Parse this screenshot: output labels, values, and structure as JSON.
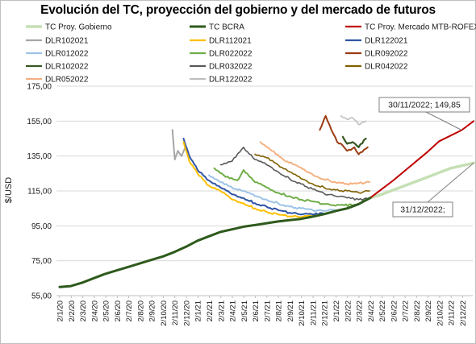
{
  "chart_data": {
    "type": "line",
    "title": "Evolución del TC, proyección del gobierno y del mercado de futuros",
    "xlabel": "",
    "ylabel": "$/USD",
    "ylim": [
      55,
      175
    ],
    "yticks": [
      "55,00",
      "75,00",
      "95,00",
      "115,00",
      "135,00",
      "155,00",
      "175,00"
    ],
    "ytick_values": [
      55,
      75,
      95,
      115,
      135,
      155,
      175
    ],
    "xticks": [
      "2/1/20",
      "2/2/20",
      "2/3/20",
      "2/4/20",
      "2/5/20",
      "2/6/20",
      "2/7/20",
      "2/8/20",
      "2/9/20",
      "2/10/20",
      "2/11/20",
      "2/12/20",
      "2/1/21",
      "2/2/21",
      "2/3/21",
      "2/4/21",
      "2/5/21",
      "2/6/21",
      "2/7/21",
      "2/8/21",
      "2/9/21",
      "2/10/21",
      "2/11/21",
      "2/12/21",
      "2/1/22",
      "2/2/22",
      "2/3/22",
      "2/4/22",
      "2/5/22",
      "2/6/22",
      "2/7/22",
      "2/8/22",
      "2/9/22",
      "2/10/22",
      "2/11/22",
      "2/12/22"
    ],
    "grid": true,
    "legend_position": "top",
    "annotations": [
      {
        "text": "30/11/2022; 149,85",
        "x": "2022-11-30",
        "y": 149.85,
        "series": "TC Proy. Mercado MTB-ROFEX"
      },
      {
        "text": "31/12/2022;",
        "x": "2022-12-31",
        "y": 131,
        "series": "TC Proy. Gobierno"
      }
    ],
    "series": [
      {
        "name": "TC Proy. Gobierno",
        "color": "#c5e0b4",
        "width": 3.5,
        "points": [
          [
            "2022-04-01",
            111
          ],
          [
            "2022-05-01",
            113
          ],
          [
            "2022-06-01",
            115.5
          ],
          [
            "2022-07-01",
            118
          ],
          [
            "2022-08-01",
            120.5
          ],
          [
            "2022-09-01",
            123
          ],
          [
            "2022-10-01",
            125.5
          ],
          [
            "2022-11-01",
            128
          ],
          [
            "2022-12-31",
            131
          ]
        ]
      },
      {
        "name": "TC BCRA",
        "color": "#2e5a1c",
        "width": 3,
        "points": [
          [
            "2020-01-02",
            60
          ],
          [
            "2020-02-01",
            60.5
          ],
          [
            "2020-03-01",
            62.5
          ],
          [
            "2020-04-01",
            65
          ],
          [
            "2020-05-01",
            67.5
          ],
          [
            "2020-06-01",
            69.5
          ],
          [
            "2020-07-01",
            71.5
          ],
          [
            "2020-08-01",
            73.5
          ],
          [
            "2020-09-01",
            75.5
          ],
          [
            "2020-10-01",
            77.5
          ],
          [
            "2020-11-01",
            80
          ],
          [
            "2020-12-01",
            83
          ],
          [
            "2021-01-01",
            86.5
          ],
          [
            "2021-02-01",
            89
          ],
          [
            "2021-03-01",
            91.5
          ],
          [
            "2021-04-01",
            93
          ],
          [
            "2021-05-01",
            94.5
          ],
          [
            "2021-06-01",
            95.5
          ],
          [
            "2021-07-01",
            96.5
          ],
          [
            "2021-08-01",
            97.5
          ],
          [
            "2021-09-01",
            98.3
          ],
          [
            "2021-10-01",
            99
          ],
          [
            "2021-11-01",
            100.3
          ],
          [
            "2021-12-01",
            101.7
          ],
          [
            "2022-01-01",
            103.5
          ],
          [
            "2022-02-01",
            105
          ],
          [
            "2022-03-01",
            107.5
          ],
          [
            "2022-04-01",
            111
          ]
        ]
      },
      {
        "name": "TC Proy. Mercado MTB-ROFEX",
        "color": "#c00000",
        "width": 2,
        "points": [
          [
            "2022-04-01",
            111
          ],
          [
            "2022-05-01",
            116
          ],
          [
            "2022-06-01",
            121
          ],
          [
            "2022-07-01",
            126.5
          ],
          [
            "2022-08-01",
            132
          ],
          [
            "2022-09-01",
            137.5
          ],
          [
            "2022-10-01",
            143.5
          ],
          [
            "2022-11-30",
            149.85
          ],
          [
            "2022-12-31",
            155
          ]
        ]
      },
      {
        "name": "DLR102021",
        "color": "#a6a6a6",
        "width": 2,
        "points": [
          [
            "2020-10-26",
            150
          ],
          [
            "2020-11-02",
            133
          ],
          [
            "2020-11-10",
            138
          ],
          [
            "2020-11-20",
            135
          ],
          [
            "2020-11-30",
            140
          ]
        ]
      },
      {
        "name": "DLR112021",
        "color": "#ffc000",
        "width": 2,
        "points": [
          [
            "2020-11-25",
            143
          ],
          [
            "2020-12-10",
            132
          ],
          [
            "2021-01-01",
            125
          ],
          [
            "2021-02-01",
            118
          ],
          [
            "2021-03-01",
            115
          ],
          [
            "2021-04-01",
            110
          ],
          [
            "2021-05-01",
            108
          ],
          [
            "2021-06-01",
            105
          ],
          [
            "2021-07-01",
            103
          ],
          [
            "2021-08-01",
            101.5
          ],
          [
            "2021-09-01",
            100.5
          ],
          [
            "2021-10-01",
            100
          ],
          [
            "2021-10-29",
            100.5
          ]
        ]
      },
      {
        "name": "DLR122021",
        "color": "#2f55a4",
        "width": 2,
        "points": [
          [
            "2020-11-25",
            145
          ],
          [
            "2020-12-10",
            135
          ],
          [
            "2021-01-01",
            127
          ],
          [
            "2021-02-01",
            121
          ],
          [
            "2021-03-01",
            117
          ],
          [
            "2021-04-01",
            113
          ],
          [
            "2021-05-01",
            111
          ],
          [
            "2021-06-01",
            108
          ],
          [
            "2021-07-01",
            106
          ],
          [
            "2021-08-01",
            104
          ],
          [
            "2021-09-01",
            102.5
          ],
          [
            "2021-10-01",
            101.5
          ],
          [
            "2021-11-01",
            101.5
          ],
          [
            "2021-11-30",
            102
          ]
        ]
      },
      {
        "name": "DLR012022",
        "color": "#9dc3e6",
        "width": 2,
        "points": [
          [
            "2021-02-01",
            124
          ],
          [
            "2021-03-01",
            120
          ],
          [
            "2021-04-01",
            117
          ],
          [
            "2021-05-01",
            115
          ],
          [
            "2021-06-01",
            112
          ],
          [
            "2021-07-01",
            110
          ],
          [
            "2021-08-01",
            108
          ],
          [
            "2021-09-01",
            106
          ],
          [
            "2021-10-01",
            105
          ],
          [
            "2021-11-01",
            104
          ],
          [
            "2021-12-01",
            103.5
          ],
          [
            "2021-12-30",
            104
          ]
        ]
      },
      {
        "name": "DLR022022",
        "color": "#70ad47",
        "width": 2,
        "points": [
          [
            "2021-02-15",
            128
          ],
          [
            "2021-03-15",
            123
          ],
          [
            "2021-04-15",
            121
          ],
          [
            "2021-05-01",
            127
          ],
          [
            "2021-06-01",
            120
          ],
          [
            "2021-07-01",
            117
          ],
          [
            "2021-08-01",
            114
          ],
          [
            "2021-09-01",
            112
          ],
          [
            "2021-10-01",
            110
          ],
          [
            "2021-11-01",
            109
          ],
          [
            "2021-12-01",
            107.5
          ],
          [
            "2022-01-01",
            106.5
          ],
          [
            "2022-02-25",
            107
          ]
        ]
      },
      {
        "name": "DLR102022",
        "color": "#385723",
        "width": 2.2,
        "points": [
          [
            "2022-01-20",
            146
          ],
          [
            "2022-02-01",
            142
          ],
          [
            "2022-02-15",
            143
          ],
          [
            "2022-03-01",
            140
          ],
          [
            "2022-03-20",
            145
          ]
        ]
      },
      {
        "name": "DLR032022",
        "color": "#595959",
        "width": 1.6,
        "points": [
          [
            "2021-03-01",
            130
          ],
          [
            "2021-04-01",
            132
          ],
          [
            "2021-05-01",
            140
          ],
          [
            "2021-06-01",
            133
          ],
          [
            "2021-07-01",
            130
          ],
          [
            "2021-08-01",
            126
          ],
          [
            "2021-09-01",
            122
          ],
          [
            "2021-10-01",
            119
          ],
          [
            "2021-11-01",
            116
          ],
          [
            "2021-12-01",
            113.5
          ],
          [
            "2022-01-01",
            112
          ],
          [
            "2022-02-01",
            111
          ],
          [
            "2022-03-01",
            110
          ],
          [
            "2022-03-30",
            110.5
          ]
        ]
      },
      {
        "name": "DLR092022",
        "color": "#9a3c12",
        "width": 2,
        "points": [
          [
            "2021-11-20",
            150
          ],
          [
            "2021-12-05",
            158
          ],
          [
            "2021-12-20",
            150
          ],
          [
            "2022-01-05",
            143
          ],
          [
            "2022-01-20",
            141
          ],
          [
            "2022-02-01",
            138
          ],
          [
            "2022-02-20",
            140
          ],
          [
            "2022-03-01",
            136
          ],
          [
            "2022-03-25",
            140
          ]
        ]
      },
      {
        "name": "DLR042022",
        "color": "#806000",
        "width": 1.6,
        "points": [
          [
            "2021-06-01",
            136
          ],
          [
            "2021-07-01",
            134
          ],
          [
            "2021-08-01",
            130
          ],
          [
            "2021-09-01",
            126
          ],
          [
            "2021-10-01",
            122
          ],
          [
            "2021-11-01",
            119
          ],
          [
            "2021-12-01",
            117
          ],
          [
            "2022-01-01",
            115.5
          ],
          [
            "2022-02-01",
            115
          ],
          [
            "2022-03-01",
            114
          ],
          [
            "2022-03-30",
            115
          ]
        ]
      },
      {
        "name": "DLR052022",
        "color": "#f4b183",
        "width": 2,
        "points": [
          [
            "2021-06-15",
            143
          ],
          [
            "2021-07-15",
            138
          ],
          [
            "2021-08-15",
            133
          ],
          [
            "2021-09-15",
            130
          ],
          [
            "2021-10-15",
            126
          ],
          [
            "2021-11-15",
            123
          ],
          [
            "2021-12-15",
            121
          ],
          [
            "2022-01-15",
            119.5
          ],
          [
            "2022-02-15",
            119
          ],
          [
            "2022-03-30",
            120
          ]
        ]
      },
      {
        "name": "DLR122022",
        "color": "#bfbfbf",
        "width": 1.6,
        "points": [
          [
            "2022-01-15",
            158
          ],
          [
            "2022-02-01",
            156
          ],
          [
            "2022-02-15",
            157
          ],
          [
            "2022-03-01",
            153
          ],
          [
            "2022-03-20",
            155
          ]
        ]
      }
    ]
  }
}
